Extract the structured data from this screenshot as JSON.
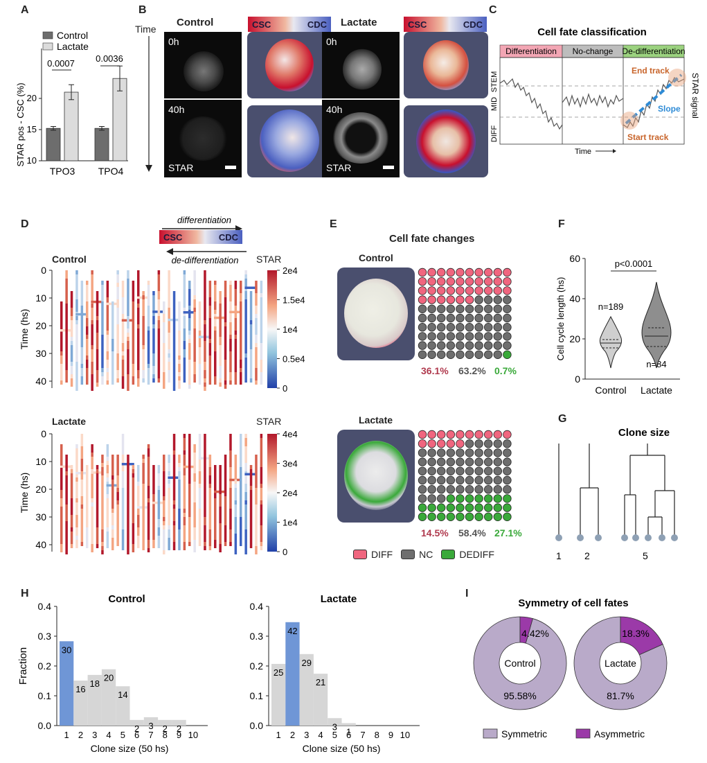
{
  "panel_labels": {
    "A": "A",
    "B": "B",
    "C": "C",
    "D": "D",
    "E": "E",
    "F": "F",
    "G": "G",
    "H": "H",
    "I": "I"
  },
  "panelA": {
    "legend": [
      "Control",
      "Lactate"
    ],
    "ylabel": "STAR pos - CSC (%)",
    "yticks": [
      "10",
      "15",
      "20"
    ],
    "groups": [
      "TPO3",
      "TPO4"
    ],
    "pvalues": [
      "0.0007",
      "0.0036"
    ],
    "colors": {
      "control": "#6d6d6d",
      "lactate": "#dcdcdc"
    }
  },
  "panelB": {
    "time_label": "Time",
    "cond": [
      "Control",
      "Lactate"
    ],
    "gradient_left": "CSC",
    "gradient_right": "CDC",
    "t0": "0h",
    "t40": "40h",
    "marker": "STAR"
  },
  "panelC": {
    "title": "Cell fate classification",
    "headers": [
      "Differentiation",
      "No-change",
      "De-differentiation"
    ],
    "ylevels": [
      "STEM",
      "MID",
      "DIFF"
    ],
    "xlabel": "Time",
    "right_label": "STAR signal",
    "end_track": "End track",
    "slope": "Slope",
    "start_track": "Start track",
    "colors": {
      "diff": "#f3a6b4",
      "nc": "#bdbdbd",
      "dediff": "#9bd27f",
      "orange": "#c8642a",
      "blue": "#2e8bd6"
    }
  },
  "panelD": {
    "arrow_top": "differentiation",
    "arrow_bottom": "de-differentiation",
    "gradient_left": "CSC",
    "gradient_right": "CDC",
    "control_title": "Control",
    "lactate_title": "Lactate",
    "star_label": "STAR",
    "ylabel": "Time (hs)",
    "yticks": [
      "0",
      "10",
      "20",
      "30",
      "40"
    ],
    "cbar_control": [
      "2e4",
      "1.5e4",
      "1e4",
      "0.5e4",
      "0"
    ],
    "cbar_lactate": [
      "4e4",
      "3e4",
      "2e4",
      "1e4",
      "0"
    ]
  },
  "panelE": {
    "title": "Cell fate changes",
    "control_title": "Control",
    "lactate_title": "Lactate",
    "control_pcts": [
      "36.1%",
      "63.2%",
      "0.7%"
    ],
    "lactate_pcts": [
      "14.5%",
      "58.4%",
      "27.1%"
    ],
    "legend": [
      "DIFF",
      "NC",
      "DEDIFF"
    ],
    "colors": {
      "diff": "#f0667f",
      "nc": "#6e6e6e",
      "dediff": "#3aa93a",
      "pct_diff": "#b03a4e",
      "pct_nc": "#555555",
      "pct_dediff": "#3aa93a"
    }
  },
  "panelF": {
    "ylabel": "Cell cycle length (hs)",
    "yticks": [
      "0",
      "20",
      "40",
      "60"
    ],
    "groups": [
      "Control",
      "Lactate"
    ],
    "pvalue": "p<0.0001",
    "n_control": "n=189",
    "n_lactate": "n=84"
  },
  "panelG": {
    "title": "Clone size",
    "sizes": [
      "1",
      "2",
      "5"
    ]
  },
  "chart_data": [
    {
      "type": "bar",
      "panel": "A",
      "categories": [
        "TPO3",
        "TPO4"
      ],
      "series": [
        {
          "name": "Control",
          "values": [
            15.2,
            15.2
          ]
        },
        {
          "name": "Lactate",
          "values": [
            21.0,
            23.2
          ]
        }
      ],
      "errors": {
        "Control": [
          0.3,
          0.3
        ],
        "Lactate": [
          1.2,
          2.0
        ]
      },
      "ylabel": "STAR pos - CSC (%)",
      "ylim": [
        10,
        28
      ]
    },
    {
      "type": "bar",
      "panel": "H-Control",
      "title": "Control",
      "xlabel": "Clone size (50 hs)",
      "ylabel": "Fraction",
      "categories": [
        "1",
        "2",
        "3",
        "4",
        "5",
        "6",
        "7",
        "8",
        "9",
        "10"
      ],
      "values": [
        0.283,
        0.151,
        0.17,
        0.189,
        0.132,
        0.019,
        0.028,
        0.019,
        0.019,
        0
      ],
      "labels": [
        "30",
        "16",
        "18",
        "20",
        "14",
        "2",
        "3",
        "2",
        "2",
        ""
      ],
      "highlight_index": 0,
      "ylim": [
        0,
        0.4
      ],
      "yticks": [
        "0.0",
        "0.1",
        "0.2",
        "0.3",
        "0.4"
      ]
    },
    {
      "type": "bar",
      "panel": "H-Lactate",
      "title": "Lactate",
      "xlabel": "Clone size (50 hs)",
      "ylabel": "",
      "categories": [
        "1",
        "2",
        "3",
        "4",
        "5",
        "6",
        "7",
        "8",
        "9",
        "10"
      ],
      "values": [
        0.207,
        0.347,
        0.24,
        0.174,
        0.025,
        0.008,
        0,
        0,
        0,
        0
      ],
      "labels": [
        "25",
        "42",
        "29",
        "21",
        "3",
        "1",
        "",
        "",
        "",
        ""
      ],
      "highlight_index": 1,
      "ylim": [
        0,
        0.4
      ],
      "yticks": [
        "0.0",
        "0.1",
        "0.2",
        "0.3",
        "0.4"
      ]
    },
    {
      "type": "pie",
      "panel": "I",
      "title": "Symmetry of cell fates",
      "charts": [
        {
          "center_label": "Control",
          "slices": [
            {
              "label": "Symmetric",
              "value": 95.58,
              "text": "95.58%"
            },
            {
              "label": "Asymmetric",
              "value": 4.42,
              "text": "4.42%"
            }
          ]
        },
        {
          "center_label": "Lactate",
          "slices": [
            {
              "label": "Symmetric",
              "value": 81.7,
              "text": "81.7%"
            },
            {
              "label": "Asymmetric",
              "value": 18.3,
              "text": "18.3%"
            }
          ]
        }
      ],
      "legend": [
        "Symmetric",
        "Asymmetric"
      ],
      "colors": {
        "sym": "#b9aac9",
        "asym": "#9b3aa8"
      }
    }
  ],
  "colors": {
    "hist_gray": "#d6d6d6",
    "hist_blue": "#6f96d6"
  }
}
